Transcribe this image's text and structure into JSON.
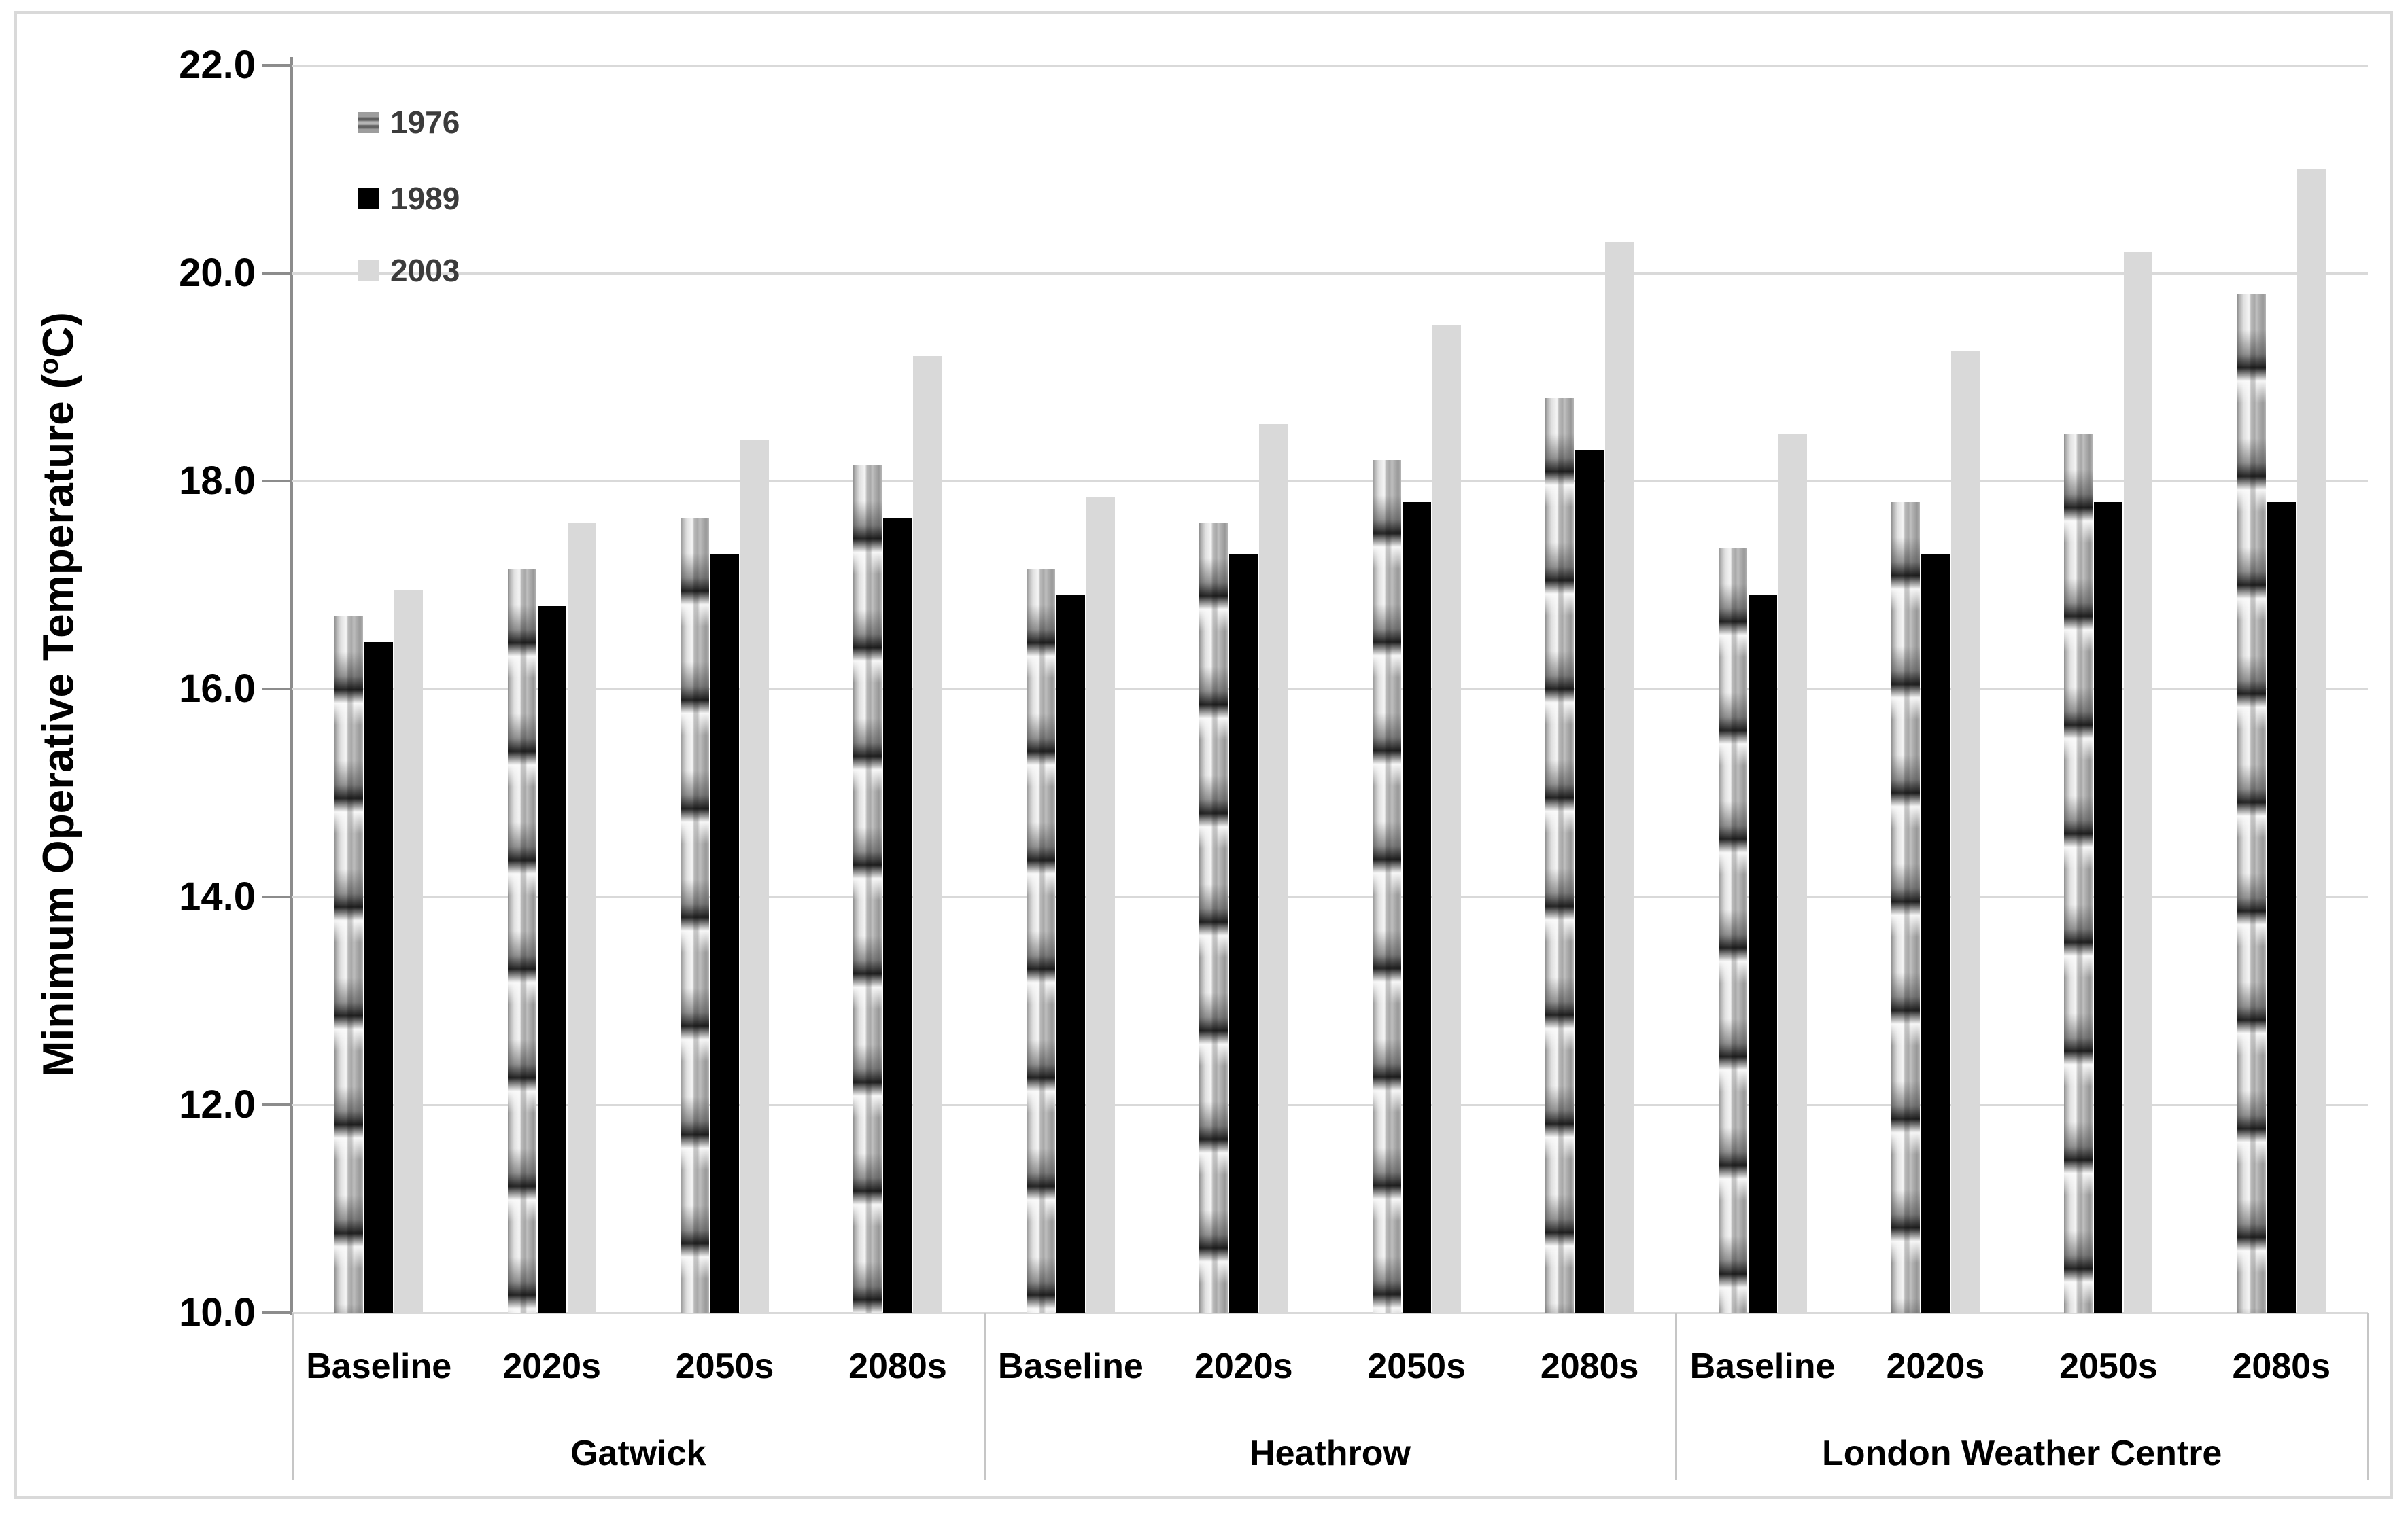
{
  "figure": {
    "background": "#ffffff",
    "frame_color": "#d9d9d9",
    "gridline_color": "#d9d9d9",
    "axis_color": "#8c8c8c",
    "text_color": "#000000",
    "legend_text_color": "#3b3b3b"
  },
  "ylabel_parts": {
    "prefix": "Minimum Operative Temperature (",
    "sup": "o",
    "suffix": "C)"
  },
  "chart_data": {
    "type": "bar",
    "title": "",
    "ylabel": "Minimum Operative Temperature (°C)",
    "xlabel": "",
    "ylim": [
      10.0,
      22.0
    ],
    "ytick_step": 2.0,
    "yticks": [
      "22.0",
      "20.0",
      "18.0",
      "16.0",
      "14.0",
      "12.0",
      "10.0"
    ],
    "grid": "horizontal",
    "legend_position": "top-left-inside",
    "categories": [
      "Baseline",
      "2020s",
      "2050s",
      "2080s",
      "Baseline",
      "2020s",
      "2050s",
      "2080s",
      "Baseline",
      "2020s",
      "2050s",
      "2080s"
    ],
    "group_labels": [
      "Gatwick",
      "Heathrow",
      "London Weather Centre"
    ],
    "categories_per_group": 4,
    "series": [
      {
        "name": "1976",
        "fill": "textured-glossy-gray",
        "values": [
          16.7,
          17.15,
          17.65,
          18.15,
          17.15,
          17.6,
          18.2,
          18.8,
          17.35,
          17.8,
          18.45,
          19.8
        ]
      },
      {
        "name": "1989",
        "fill": "#000000",
        "values": [
          16.45,
          16.8,
          17.3,
          17.65,
          16.9,
          17.3,
          17.8,
          18.3,
          16.9,
          17.3,
          17.8,
          17.8
        ]
      },
      {
        "name": "2003",
        "fill": "#d9d9d9",
        "values": [
          16.95,
          17.6,
          18.4,
          19.2,
          17.85,
          18.55,
          19.5,
          20.3,
          18.45,
          19.25,
          20.2,
          21.0
        ]
      }
    ]
  }
}
